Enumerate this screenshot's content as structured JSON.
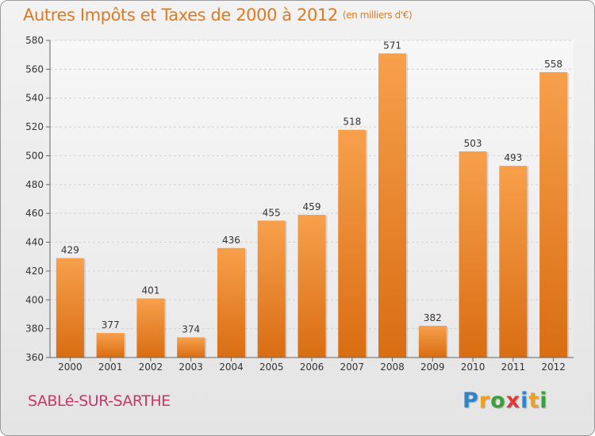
{
  "header": {
    "title": "Autres Impôts et Taxes de 2000 à 2012",
    "subtitle": "(en milliers d'€)"
  },
  "chart_data": {
    "type": "bar",
    "categories": [
      "2000",
      "2001",
      "2002",
      "2003",
      "2004",
      "2005",
      "2006",
      "2007",
      "2008",
      "2009",
      "2010",
      "2011",
      "2012"
    ],
    "values": [
      429,
      377,
      401,
      374,
      436,
      455,
      459,
      518,
      571,
      382,
      503,
      493,
      558
    ],
    "data_labels": [
      "429",
      "377",
      "401",
      "374",
      "436",
      "455",
      "459",
      "518",
      "571",
      "382",
      "503",
      "493",
      "558"
    ],
    "ylim": [
      360,
      580
    ],
    "yticks": [
      360,
      380,
      400,
      420,
      440,
      460,
      480,
      500,
      520,
      540,
      560,
      580
    ],
    "grid": true,
    "bar_color": "#f08c30"
  },
  "footer": {
    "location": "SABLé-SUR-SARTHE",
    "brand_letters": [
      {
        "ch": "P",
        "color": "#2e86c8"
      },
      {
        "ch": "r",
        "color": "#f0a020"
      },
      {
        "ch": "o",
        "color": "#3aa03a"
      },
      {
        "ch": "x",
        "color": "#e03a3a"
      },
      {
        "ch": "i",
        "color": "#2e86c8"
      },
      {
        "ch": "t",
        "color": "#f0a020"
      },
      {
        "ch": "i",
        "color": "#3aa03a"
      }
    ]
  }
}
